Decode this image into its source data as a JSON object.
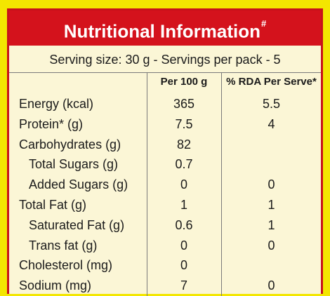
{
  "title": "Nutritional Information",
  "title_mark": "#",
  "serving_text": "Serving size: 30 g - Servings per pack - 5",
  "columns": {
    "per_100g": "Per 100 g",
    "rda": "% RDA Per Serve*"
  },
  "rows": [
    {
      "label": "Energy (kcal)",
      "per_100g": "365",
      "rda": "5.5",
      "indent": false
    },
    {
      "label": "Protein* (g)",
      "per_100g": "7.5",
      "rda": "4",
      "indent": false
    },
    {
      "label": "Carbohydrates (g)",
      "per_100g": "82",
      "rda": "",
      "indent": false
    },
    {
      "label": "Total Sugars (g)",
      "per_100g": "0.7",
      "rda": "",
      "indent": true
    },
    {
      "label": "Added Sugars (g)",
      "per_100g": "0",
      "rda": "0",
      "indent": true
    },
    {
      "label": "Total Fat (g)",
      "per_100g": "1",
      "rda": "1",
      "indent": false
    },
    {
      "label": "Saturated Fat (g)",
      "per_100g": "0.6",
      "rda": "1",
      "indent": true
    },
    {
      "label": "Trans fat (g)",
      "per_100g": "0",
      "rda": "0",
      "indent": true
    },
    {
      "label": "Cholesterol (mg)",
      "per_100g": "0",
      "rda": "",
      "indent": false
    },
    {
      "label": "Sodium (mg)",
      "per_100g": "7",
      "rda": "0",
      "indent": false
    }
  ],
  "colors": {
    "header_bg": "#d4121c",
    "panel_bg": "#fbf6d6",
    "outer_bg": "#f3e600",
    "border": "#c8111a"
  }
}
